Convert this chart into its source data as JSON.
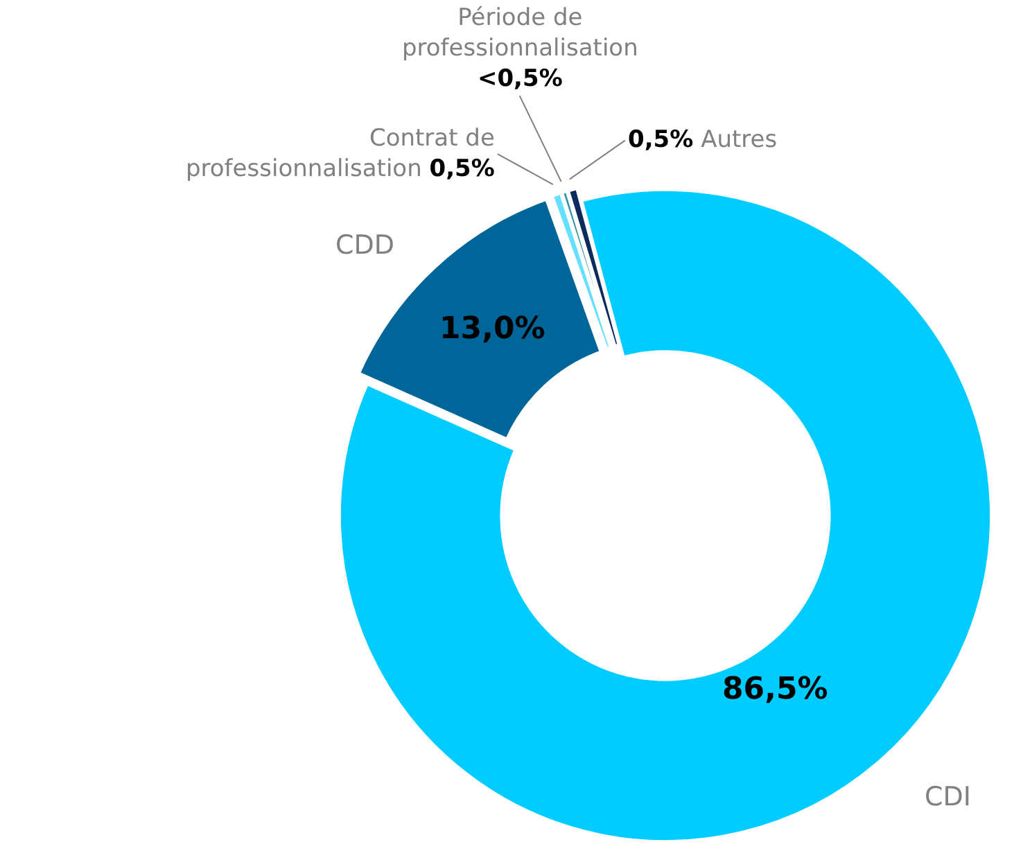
{
  "chart_data": {
    "type": "donut",
    "categories": [
      "CDI",
      "CDD",
      "Contrat de professionnalisation",
      "Période de professionnalisation",
      "Autres"
    ],
    "values": [
      86.5,
      13.0,
      0.5,
      0.3,
      0.5
    ],
    "value_labels": [
      "86,5%",
      "13,0%",
      "0,5%",
      "<0,5%",
      "0,5%"
    ],
    "colors": [
      "#00ccff",
      "#006699",
      "#66e0ff",
      "#2f8fa3",
      "#0b2a5e"
    ],
    "legend": false
  }
}
